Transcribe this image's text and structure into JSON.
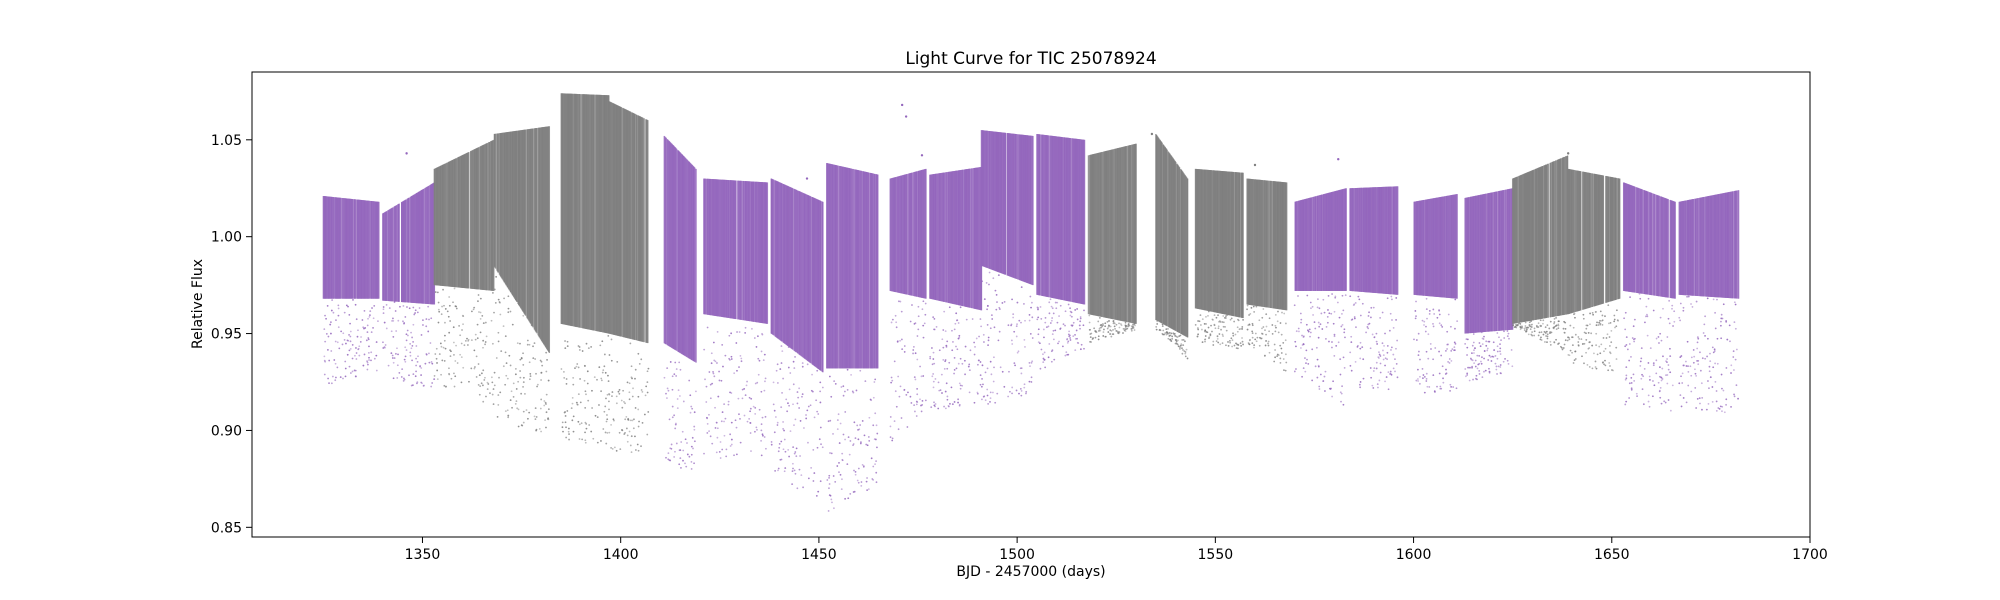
{
  "chart_data": {
    "type": "scatter",
    "title": "Light Curve for TIC 25078924",
    "xlabel": "BJD - 2457000 (days)",
    "ylabel": "Relative Flux",
    "xlim": [
      1307,
      1700
    ],
    "ylim": [
      0.845,
      1.085
    ],
    "xticks": [
      1350,
      1400,
      1450,
      1500,
      1550,
      1600,
      1650,
      1700
    ],
    "yticks": [
      0.85,
      0.9,
      0.95,
      1.0,
      1.05
    ],
    "xtick_labels": [
      "1350",
      "1400",
      "1450",
      "1500",
      "1550",
      "1600",
      "1650",
      "1700"
    ],
    "ytick_labels": [
      "0.85",
      "0.90",
      "0.95",
      "1.00",
      "1.05"
    ],
    "grid": false,
    "legend": null,
    "colors": {
      "purple": "#9467bd",
      "gray": "#7f7f7f"
    },
    "segments": [
      {
        "x0": 1325,
        "x1": 1339,
        "color": "purple",
        "top": [
          1.021,
          1.018
        ],
        "core_bottom": [
          0.968,
          0.968
        ],
        "tail_bottom": [
          0.923,
          0.93
        ]
      },
      {
        "x0": 1340,
        "x1": 1353,
        "color": "purple",
        "top": [
          1.012,
          1.028
        ],
        "core_bottom": [
          0.967,
          0.965
        ],
        "tail_bottom": [
          0.928,
          0.918
        ]
      },
      {
        "x0": 1353,
        "x1": 1368,
        "color": "gray",
        "top": [
          1.035,
          1.05
        ],
        "core_bottom": [
          0.975,
          0.972
        ],
        "tail_bottom": [
          0.925,
          0.912
        ]
      },
      {
        "x0": 1368,
        "x1": 1382,
        "color": "gray",
        "top": [
          1.053,
          1.057
        ],
        "core_bottom": [
          0.985,
          0.94
        ],
        "tail_bottom": [
          0.905,
          0.898
        ]
      },
      {
        "x0": 1385,
        "x1": 1397,
        "color": "gray",
        "top": [
          1.074,
          1.073
        ],
        "core_bottom": [
          0.955,
          0.95
        ],
        "tail_bottom": [
          0.895,
          0.892
        ]
      },
      {
        "x0": 1397,
        "x1": 1407,
        "color": "gray",
        "top": [
          1.07,
          1.06
        ],
        "core_bottom": [
          0.95,
          0.945
        ],
        "tail_bottom": [
          0.89,
          0.885
        ]
      },
      {
        "x0": 1411,
        "x1": 1419,
        "color": "purple",
        "top": [
          1.052,
          1.035
        ],
        "core_bottom": [
          0.945,
          0.935
        ],
        "tail_bottom": [
          0.883,
          0.878
        ]
      },
      {
        "x0": 1421,
        "x1": 1437,
        "color": "purple",
        "top": [
          1.03,
          1.028
        ],
        "core_bottom": [
          0.96,
          0.955
        ],
        "tail_bottom": [
          0.885,
          0.887
        ]
      },
      {
        "x0": 1438,
        "x1": 1451,
        "color": "purple",
        "top": [
          1.03,
          1.018
        ],
        "core_bottom": [
          0.95,
          0.93
        ],
        "tail_bottom": [
          0.875,
          0.865
        ]
      },
      {
        "x0": 1452,
        "x1": 1465,
        "color": "purple",
        "top": [
          1.038,
          1.032
        ],
        "core_bottom": [
          0.932,
          0.932
        ],
        "tail_bottom": [
          0.858,
          0.87
        ]
      },
      {
        "x0": 1468,
        "x1": 1477,
        "color": "purple",
        "top": [
          1.03,
          1.035
        ],
        "core_bottom": [
          0.972,
          0.968
        ],
        "tail_bottom": [
          0.893,
          0.91
        ]
      },
      {
        "x0": 1478,
        "x1": 1491,
        "color": "purple",
        "top": [
          1.032,
          1.036
        ],
        "core_bottom": [
          0.968,
          0.962
        ],
        "tail_bottom": [
          0.91,
          0.912
        ]
      },
      {
        "x0": 1491,
        "x1": 1504,
        "color": "purple",
        "top": [
          1.055,
          1.052
        ],
        "core_bottom": [
          0.985,
          0.975
        ],
        "tail_bottom": [
          0.912,
          0.918
        ]
      },
      {
        "x0": 1505,
        "x1": 1517,
        "color": "purple",
        "top": [
          1.053,
          1.05
        ],
        "core_bottom": [
          0.97,
          0.965
        ],
        "tail_bottom": [
          0.93,
          0.942
        ]
      },
      {
        "x0": 1518,
        "x1": 1530,
        "color": "gray",
        "top": [
          1.042,
          1.048
        ],
        "core_bottom": [
          0.96,
          0.955
        ],
        "tail_bottom": [
          0.945,
          0.952
        ]
      },
      {
        "x0": 1535,
        "x1": 1543,
        "color": "gray",
        "top": [
          1.053,
          1.03
        ],
        "core_bottom": [
          0.957,
          0.948
        ],
        "tail_bottom": [
          0.952,
          0.937
        ]
      },
      {
        "x0": 1545,
        "x1": 1557,
        "color": "gray",
        "top": [
          1.035,
          1.033
        ],
        "core_bottom": [
          0.963,
          0.958
        ],
        "tail_bottom": [
          0.945,
          0.942
        ]
      },
      {
        "x0": 1558,
        "x1": 1568,
        "color": "gray",
        "top": [
          1.03,
          1.028
        ],
        "core_bottom": [
          0.965,
          0.962
        ],
        "tail_bottom": [
          0.945,
          0.93
        ]
      },
      {
        "x0": 1570,
        "x1": 1583,
        "color": "purple",
        "top": [
          1.018,
          1.025
        ],
        "core_bottom": [
          0.972,
          0.972
        ],
        "tail_bottom": [
          0.93,
          0.912
        ]
      },
      {
        "x0": 1584,
        "x1": 1596,
        "color": "purple",
        "top": [
          1.025,
          1.026
        ],
        "core_bottom": [
          0.972,
          0.97
        ],
        "tail_bottom": [
          0.922,
          0.92
        ]
      },
      {
        "x0": 1600,
        "x1": 1611,
        "color": "purple",
        "top": [
          1.018,
          1.022
        ],
        "core_bottom": [
          0.97,
          0.968
        ],
        "tail_bottom": [
          0.92,
          0.918
        ]
      },
      {
        "x0": 1613,
        "x1": 1625,
        "color": "purple",
        "top": [
          1.02,
          1.025
        ],
        "core_bottom": [
          0.95,
          0.952
        ],
        "tail_bottom": [
          0.925,
          0.93
        ]
      },
      {
        "x0": 1625,
        "x1": 1639,
        "color": "gray",
        "top": [
          1.03,
          1.042
        ],
        "core_bottom": [
          0.955,
          0.96
        ],
        "tail_bottom": [
          0.953,
          0.94
        ]
      },
      {
        "x0": 1639,
        "x1": 1652,
        "color": "gray",
        "top": [
          1.035,
          1.03
        ],
        "core_bottom": [
          0.96,
          0.968
        ],
        "tail_bottom": [
          0.935,
          0.928
        ]
      },
      {
        "x0": 1653,
        "x1": 1666,
        "color": "purple",
        "top": [
          1.028,
          1.018
        ],
        "core_bottom": [
          0.972,
          0.968
        ],
        "tail_bottom": [
          0.912,
          0.908
        ]
      },
      {
        "x0": 1667,
        "x1": 1682,
        "color": "purple",
        "top": [
          1.018,
          1.024
        ],
        "core_bottom": [
          0.97,
          0.968
        ],
        "tail_bottom": [
          0.912,
          0.908
        ]
      }
    ],
    "outliers": [
      {
        "x": 1346,
        "y": 1.043,
        "color": "purple"
      },
      {
        "x": 1471,
        "y": 1.068,
        "color": "purple"
      },
      {
        "x": 1472,
        "y": 1.062,
        "color": "purple"
      },
      {
        "x": 1476,
        "y": 1.042,
        "color": "purple"
      },
      {
        "x": 1447,
        "y": 1.03,
        "color": "purple"
      },
      {
        "x": 1534,
        "y": 1.053,
        "color": "gray"
      },
      {
        "x": 1581,
        "y": 1.04,
        "color": "purple"
      },
      {
        "x": 1639,
        "y": 1.043,
        "color": "gray"
      },
      {
        "x": 1560,
        "y": 1.037,
        "color": "gray"
      }
    ]
  }
}
